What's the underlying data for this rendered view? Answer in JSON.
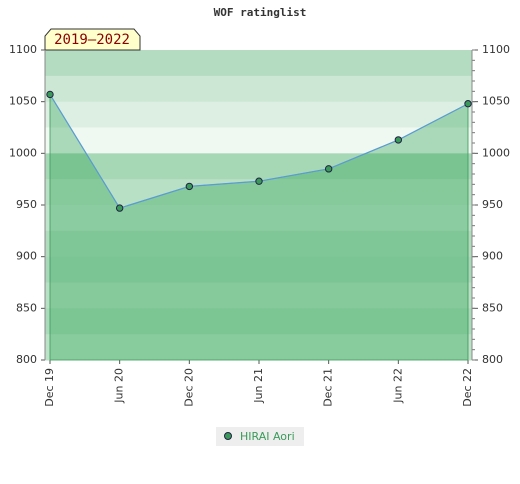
{
  "chart_data": {
    "type": "line",
    "title": "WOF ratinglist",
    "badge": "2019–2022",
    "categories": [
      "Dec 19",
      "Jun 20",
      "Dec 20",
      "Jun 21",
      "Dec 21",
      "Jun 22",
      "Dec 22"
    ],
    "series": [
      {
        "name": "HIRAI Aori",
        "color": "#5b9bd5",
        "values": [
          1057,
          947,
          968,
          973,
          985,
          1013,
          1048
        ]
      }
    ],
    "ylim": [
      800,
      1100
    ],
    "yticks": [
      800,
      850,
      900,
      950,
      1000,
      1050,
      1100
    ],
    "y2lim": [
      800,
      1100
    ],
    "y2ticks": [
      800,
      850,
      900,
      950,
      1000,
      1050,
      1100
    ]
  }
}
